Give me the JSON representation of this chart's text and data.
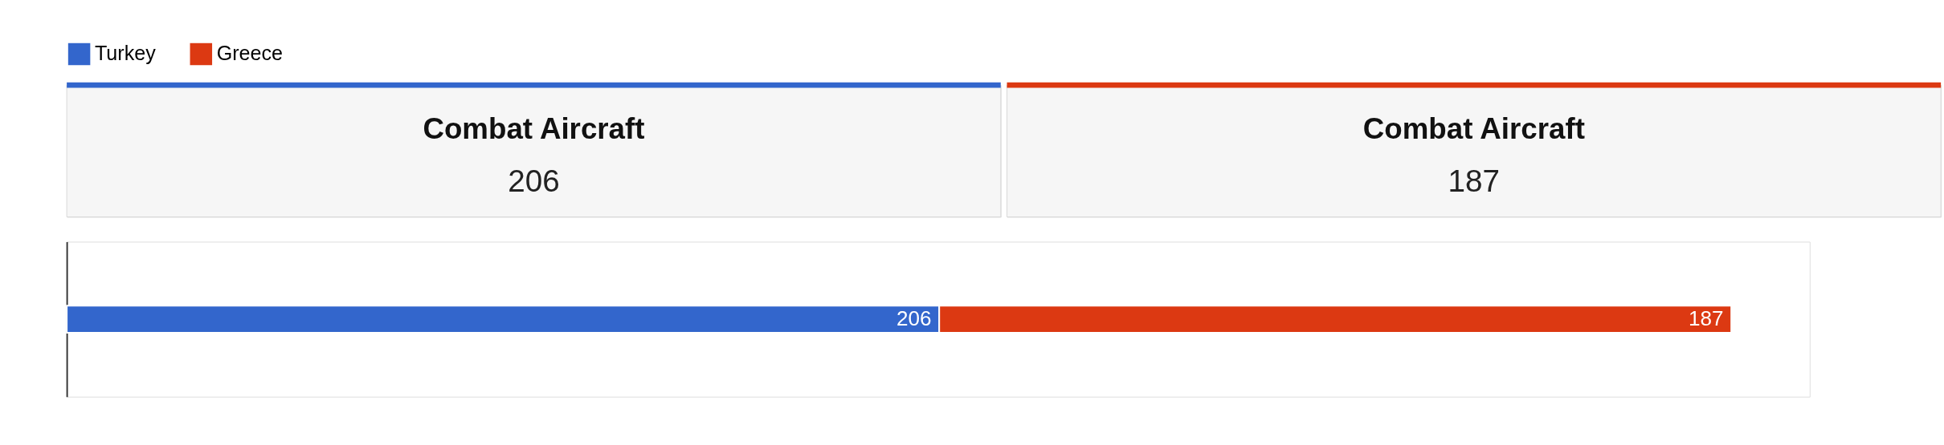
{
  "chart_data": [
    {
      "type": "other",
      "title": "Combat Aircraft",
      "annotations": [
        "206"
      ],
      "color": "#3366cc"
    },
    {
      "type": "other",
      "title": "Combat Aircraft",
      "annotations": [
        "187"
      ],
      "color": "#dc3912"
    },
    {
      "type": "bar",
      "orientation": "horizontal",
      "stacked": true,
      "categories": [
        null
      ],
      "data_labels": true,
      "legend": "top left",
      "series": [
        {
          "name": "Turkey",
          "color": "#3366cc",
          "values": [
            206
          ]
        },
        {
          "name": "Greece",
          "color": "#dc3912",
          "values": [
            187
          ]
        }
      ]
    }
  ]
}
